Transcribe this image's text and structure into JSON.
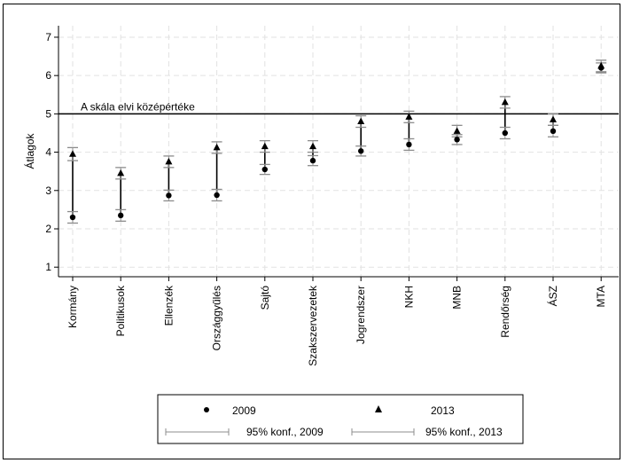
{
  "chart_data": {
    "type": "scatter",
    "ylabel": "Átlagok",
    "ylim": [
      0.75,
      7.3
    ],
    "yticks": [
      1,
      2,
      3,
      4,
      5,
      6,
      7
    ],
    "categories": [
      "Kormány",
      "Politikusok",
      "Ellenzék",
      "Országgyűlés",
      "Sajtó",
      "Szakszervezetek",
      "Jogrendszer",
      "NKH",
      "MNB",
      "Rendőrség",
      "ÁSZ",
      "MTA"
    ],
    "series": [
      {
        "name": "2009",
        "marker": "circle",
        "values": [
          2.3,
          2.35,
          2.87,
          2.88,
          3.55,
          3.78,
          4.03,
          4.2,
          4.33,
          4.5,
          4.55,
          6.2
        ],
        "ci_low": [
          2.15,
          2.2,
          2.73,
          2.73,
          3.42,
          3.65,
          3.9,
          4.05,
          4.2,
          4.35,
          4.4,
          6.07
        ],
        "ci_high": [
          2.45,
          2.5,
          3.01,
          3.03,
          3.68,
          3.91,
          4.16,
          4.35,
          4.46,
          4.65,
          4.7,
          6.33
        ]
      },
      {
        "name": "2013",
        "marker": "triangle",
        "values": [
          3.95,
          3.45,
          3.75,
          4.12,
          4.15,
          4.15,
          4.8,
          4.92,
          4.55,
          5.3,
          4.85,
          6.25
        ],
        "ci_low": [
          3.78,
          3.3,
          3.6,
          3.97,
          4.0,
          4.0,
          4.65,
          4.77,
          4.4,
          5.15,
          4.7,
          6.1
        ],
        "ci_high": [
          4.12,
          3.6,
          3.9,
          4.27,
          4.3,
          4.3,
          4.95,
          5.07,
          4.7,
          5.45,
          5.0,
          6.4
        ]
      }
    ],
    "reference_line": {
      "value": 5,
      "label": "A skála elvi középértéke"
    },
    "grid": true,
    "legend": {
      "position": "bottom",
      "items": [
        "2009",
        "2013",
        "95% konf., 2009",
        "95% konf., 2013"
      ]
    }
  },
  "colors": {
    "marker": "#000000",
    "ci": "#8c8c8c",
    "grid": "#e2e2e2",
    "axis": "#000000"
  }
}
